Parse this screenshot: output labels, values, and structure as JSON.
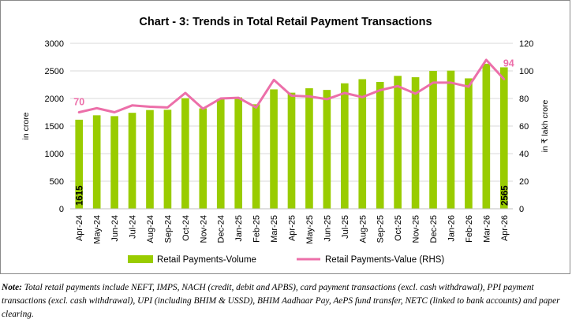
{
  "chart_data": {
    "type": "bar",
    "title": "Chart - 3: Trends in Total Retail Payment Transactions",
    "ylabel": "in crore",
    "y2label": "in ₹ lakh crore",
    "xlabel": "",
    "ylim": [
      0,
      3000
    ],
    "y2lim": [
      0,
      120
    ],
    "yticks": [
      "0",
      "500",
      "1000",
      "1500",
      "2000",
      "2500",
      "3000"
    ],
    "y2ticks": [
      "0",
      "20",
      "40",
      "60",
      "80",
      "100",
      "120"
    ],
    "grid": true,
    "legend_position": "bottom",
    "categories": [
      "Apr-24",
      "May-24",
      "Jun-24",
      "Jul-24",
      "Aug-24",
      "Sep-24",
      "Oct-24",
      "Nov-24",
      "Dec-24",
      "Jan-25",
      "Feb-25",
      "Mar-25",
      "Apr-25",
      "May-25",
      "Jun-25",
      "Jul-25",
      "Aug-25",
      "Sep-25",
      "Oct-25",
      "Nov-25",
      "Dec-25",
      "Jan-26",
      "Feb-26",
      "Mar-26",
      "Apr-26"
    ],
    "series": [
      {
        "name": "Retail Payments-Volume",
        "type": "bar",
        "axis": "left",
        "color": "#99cc00",
        "values": [
          1615,
          1695,
          1680,
          1740,
          1790,
          1795,
          2005,
          1820,
          1985,
          2020,
          1895,
          2165,
          2105,
          2185,
          2155,
          2275,
          2350,
          2300,
          2410,
          2385,
          2500,
          2505,
          2365,
          2630,
          2565
        ],
        "data_labels": [
          "1615",
          "",
          "",
          "",
          "",
          "",
          "",
          "",
          "",
          "",
          "",
          "",
          "",
          "",
          "",
          "",
          "",
          "",
          "",
          "",
          "",
          "",
          "",
          "",
          "2565"
        ]
      },
      {
        "name": "Retail Payments-Value (RHS)",
        "type": "line",
        "axis": "right",
        "color": "#ec6fa9",
        "values": [
          70,
          73,
          70,
          75,
          74,
          73.5,
          84,
          72.5,
          80,
          80.5,
          73.5,
          93.5,
          82,
          81.5,
          79.5,
          84,
          81,
          86,
          89,
          83.5,
          91.5,
          91.5,
          88.5,
          108,
          94
        ],
        "data_labels": [
          "70",
          "",
          "",
          "",
          "",
          "",
          "",
          "",
          "",
          "",
          "",
          "",
          "",
          "",
          "",
          "",
          "",
          "",
          "",
          "",
          "",
          "",
          "",
          "",
          "94"
        ]
      }
    ]
  },
  "note": {
    "lead": "Note:",
    "text": " Total retail payments include NEFT, IMPS, NACH (credit, debit and APBS), card payment transactions (excl. cash withdrawal), PPI payment transactions (excl. cash withdrawal), UPI (including BHIM & USSD), BHIM Aadhaar Pay, AePS fund transfer, NETC (linked to bank accounts) and paper clearing."
  }
}
